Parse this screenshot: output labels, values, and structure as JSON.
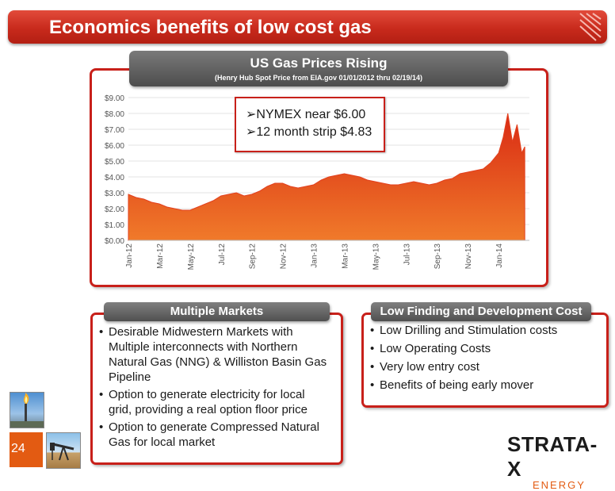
{
  "slide": {
    "title": "Economics benefits of low cost gas",
    "number": "24"
  },
  "chart_header": {
    "title": "US Gas Prices Rising",
    "subtitle": "(Henry Hub Spot Price from EIA.gov 01/01/2012 thru 02/19/14)"
  },
  "callout": {
    "line1": "➢NYMEX near $6.00",
    "line2": "➢12 month strip $4.83"
  },
  "chart_data": {
    "type": "area",
    "title": "",
    "xlabel": "",
    "ylabel": "",
    "ylim": [
      0,
      9
    ],
    "yticks": [
      "$0.00",
      "$1.00",
      "$2.00",
      "$3.00",
      "$4.00",
      "$5.00",
      "$6.00",
      "$7.00",
      "$8.00",
      "$9.00"
    ],
    "xticks": [
      "Jan-12",
      "Mar-12",
      "May-12",
      "Jul-12",
      "Sep-12",
      "Nov-12",
      "Jan-13",
      "Mar-13",
      "May-13",
      "Jul-13",
      "Sep-13",
      "Nov-13",
      "Jan-14"
    ],
    "grid": true,
    "color": "#e2401e",
    "series": [
      {
        "x": [
          0,
          0.5,
          1,
          1.5,
          2,
          2.5,
          3,
          3.5,
          4,
          4.5,
          5,
          5.5,
          6,
          6.5,
          7,
          7.5,
          8,
          8.5,
          9,
          9.5,
          10,
          10.5,
          11,
          11.5,
          12,
          12.5,
          13,
          13.5,
          14,
          14.5,
          15,
          15.5,
          16,
          16.5,
          17,
          17.5,
          18,
          18.5,
          19,
          19.5,
          20,
          20.5,
          21,
          21.5,
          22,
          22.5,
          23,
          23.5,
          24,
          24.3,
          24.6,
          24.9,
          25.2,
          25.5,
          25.7
        ],
        "values": [
          2.9,
          2.7,
          2.6,
          2.4,
          2.3,
          2.1,
          2.0,
          1.9,
          1.9,
          2.1,
          2.3,
          2.5,
          2.8,
          2.9,
          3.0,
          2.8,
          2.9,
          3.1,
          3.4,
          3.6,
          3.6,
          3.4,
          3.3,
          3.4,
          3.5,
          3.8,
          4.0,
          4.1,
          4.2,
          4.1,
          4.0,
          3.8,
          3.7,
          3.6,
          3.5,
          3.5,
          3.6,
          3.7,
          3.6,
          3.5,
          3.6,
          3.8,
          3.9,
          4.2,
          4.3,
          4.4,
          4.5,
          4.9,
          5.5,
          6.5,
          8.0,
          6.2,
          7.3,
          5.5,
          5.9
        ]
      }
    ]
  },
  "markets": {
    "header": "Multiple Markets",
    "items": [
      "Desirable Midwestern Markets with Multiple interconnects with Northern Natural Gas (NNG) & Williston Basin Gas Pipeline",
      "Option to generate electricity for local grid, providing a real option floor price",
      "Option to generate Compressed Natural Gas for local market"
    ]
  },
  "costs": {
    "header": "Low Finding and Development Cost",
    "items": [
      "Low Drilling and Stimulation costs",
      "Low Operating Costs",
      "Very low entry cost",
      "Benefits of being early mover"
    ]
  },
  "logo": {
    "main": "STRATA-X",
    "sub": "ENERGY"
  }
}
